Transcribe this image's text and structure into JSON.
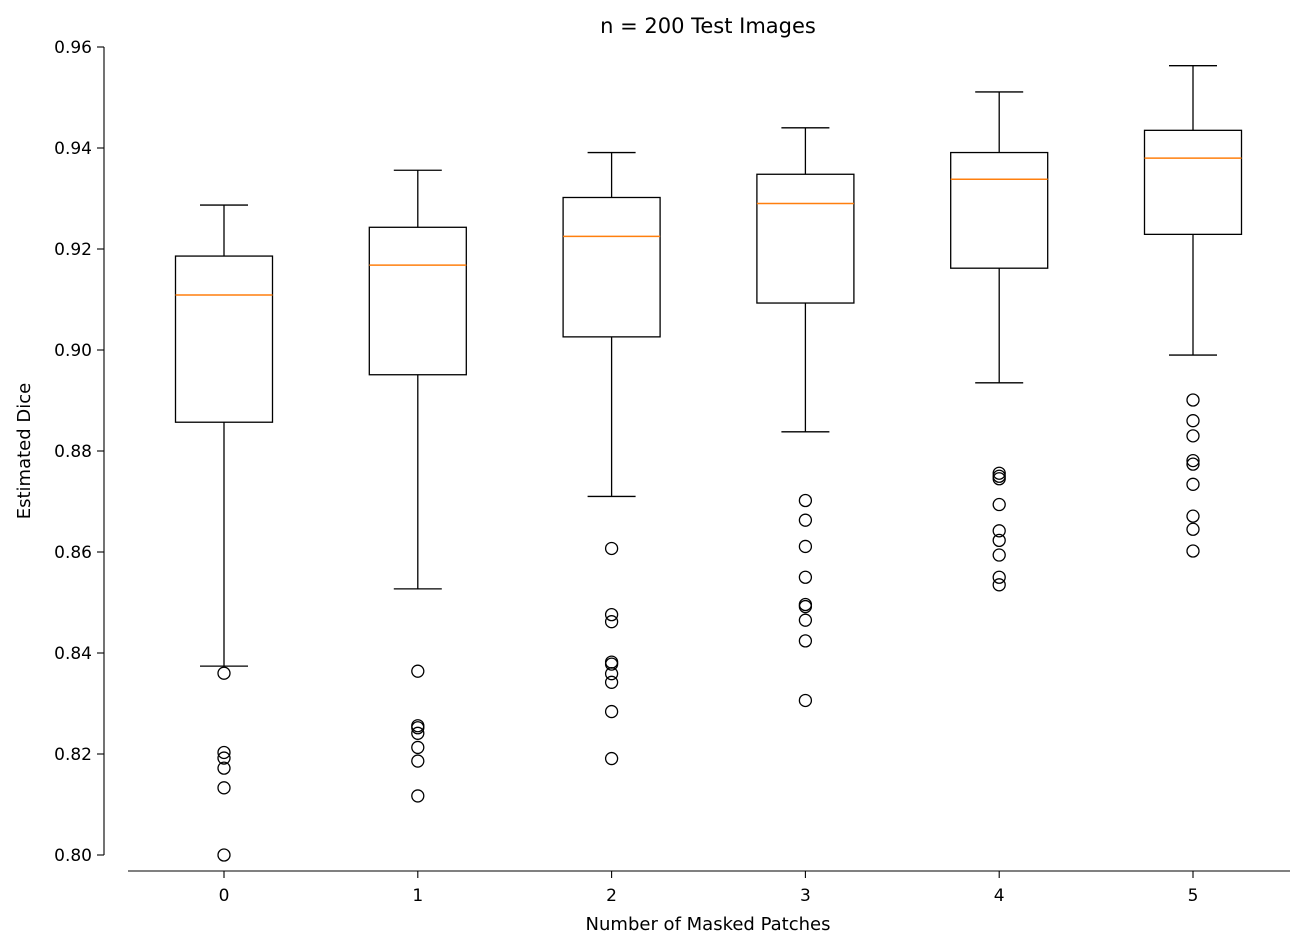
{
  "chart_data": {
    "type": "box",
    "title": "n = 200 Test Images",
    "xlabel": "Number of Masked Patches",
    "ylabel": "Estimated Dice",
    "ylim": [
      0.8,
      0.96
    ],
    "yticks": [
      "0.80",
      "0.82",
      "0.84",
      "0.86",
      "0.88",
      "0.90",
      "0.92",
      "0.94",
      "0.96"
    ],
    "categories": [
      "0",
      "1",
      "2",
      "3",
      "4",
      "5"
    ],
    "median_color": "#ff7f0e",
    "grid": false,
    "boxes": [
      {
        "q1": 0.8857,
        "median": 0.9109,
        "q3": 0.9186,
        "whisker_low": 0.8374,
        "whisker_high": 0.9287,
        "fliers": [
          0.836,
          0.8203,
          0.8192,
          0.8172,
          0.8133,
          0.8
        ]
      },
      {
        "q1": 0.8951,
        "median": 0.9168,
        "q3": 0.9243,
        "whisker_low": 0.8527,
        "whisker_high": 0.9356,
        "fliers": [
          0.8364,
          0.8256,
          0.8252,
          0.8241,
          0.8213,
          0.8186,
          0.8117
        ]
      },
      {
        "q1": 0.9026,
        "median": 0.9225,
        "q3": 0.9302,
        "whisker_low": 0.871,
        "whisker_high": 0.9391,
        "fliers": [
          0.8607,
          0.8476,
          0.8462,
          0.8382,
          0.8378,
          0.8359,
          0.8342,
          0.8284,
          0.8191
        ]
      },
      {
        "q1": 0.9093,
        "median": 0.929,
        "q3": 0.9348,
        "whisker_low": 0.8838,
        "whisker_high": 0.944,
        "fliers": [
          0.8702,
          0.8663,
          0.8611,
          0.855,
          0.8496,
          0.8492,
          0.8465,
          0.8424,
          0.8306
        ]
      },
      {
        "q1": 0.9162,
        "median": 0.9338,
        "q3": 0.9391,
        "whisker_low": 0.8935,
        "whisker_high": 0.9511,
        "fliers": [
          0.8756,
          0.875,
          0.8745,
          0.8694,
          0.8642,
          0.8623,
          0.8594,
          0.855,
          0.8535
        ]
      },
      {
        "q1": 0.9229,
        "median": 0.938,
        "q3": 0.9435,
        "whisker_low": 0.899,
        "whisker_high": 0.9563,
        "fliers": [
          0.8901,
          0.886,
          0.883,
          0.8781,
          0.8774,
          0.8734,
          0.8671,
          0.8645,
          0.8602
        ]
      }
    ]
  }
}
